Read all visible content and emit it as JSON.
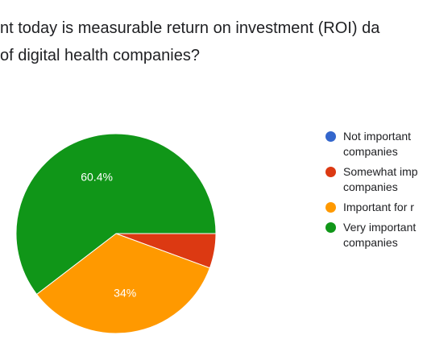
{
  "chart_data": {
    "type": "pie",
    "title_lines": [
      "nt today is measurable return on investment (ROI) da",
      "of digital health companies?"
    ],
    "slices": [
      {
        "label": "Not important\ncompanies",
        "value": 0,
        "color": "#3366cc",
        "data_label": ""
      },
      {
        "label": "Somewhat imp\ncompanies",
        "value": 5.6,
        "color": "#dc3912",
        "data_label": ""
      },
      {
        "label": "Important for r",
        "value": 34,
        "color": "#ff9900",
        "data_label": "34%"
      },
      {
        "label": "Very important\ncompanies",
        "value": 60.4,
        "color": "#109618",
        "data_label": "60.4%"
      }
    ],
    "legend_position": "right"
  }
}
